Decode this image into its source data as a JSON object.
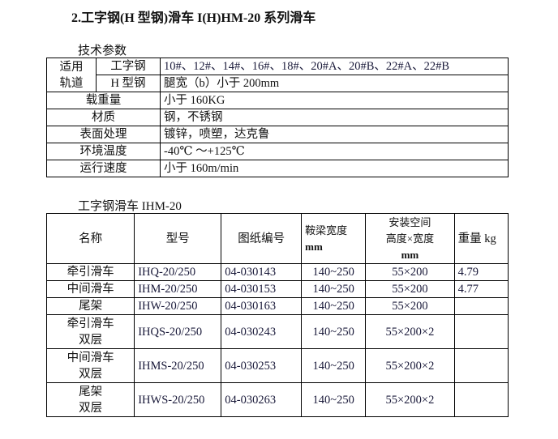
{
  "title": "2.工字钢(H 型钢)滑车 I(H)HM-20 系列滑车",
  "spec": {
    "caption": "技术参数",
    "track_label": "适用轨道",
    "track_l1": "适用",
    "track_l2": "轨道",
    "ibeam_label": "工字钢",
    "ibeam_value": "10#、12#、14#、16#、18#、20#A、20#B、22#A、22#B",
    "hbeam_label": "H 型钢",
    "hbeam_value": "腿宽（b）小于 200mm",
    "rows": [
      {
        "label": "载重量",
        "value": "小于 160KG"
      },
      {
        "label": "材质",
        "value": "钢，不锈钢"
      },
      {
        "label": "表面处理",
        "value": "镀锌，喷塑，达克鲁"
      },
      {
        "label": "环境温度",
        "value": "-40℃ ～+125℃"
      },
      {
        "label": "运行速度",
        "value": "小于 160m/min"
      }
    ]
  },
  "models": {
    "caption": "工字钢滑车 IHM-20",
    "headers": [
      "名称",
      "型号",
      "图纸编号",
      "鞍梁宽度",
      "mm",
      "安装空间",
      "高度×宽度",
      "mm",
      "重量 kg"
    ],
    "rows": [
      {
        "name1": "牵引滑车",
        "name2": "",
        "model": "IHQ-20/250",
        "drawing": "04-030143",
        "width": "140~250",
        "space": "55×200",
        "weight": "4.79"
      },
      {
        "name1": "中间滑车",
        "name2": "",
        "model": "IHM-20/250",
        "drawing": "04-030153",
        "width": "140~250",
        "space": "55×200",
        "weight": "4.77"
      },
      {
        "name1": "尾架",
        "name2": "",
        "model": "IHW-20/250",
        "drawing": "04-030163",
        "width": "140~250",
        "space": "55×200",
        "weight": ""
      },
      {
        "name1": "牵引滑车",
        "name2": "双层",
        "model": "IHQS-20/250",
        "drawing": "04-030243",
        "width": "140~250",
        "space": "55×200×2",
        "weight": ""
      },
      {
        "name1": "中间滑车",
        "name2": "双层",
        "model": "IHMS-20/250",
        "drawing": "04-030253",
        "width": "140~250",
        "space": "55×200×2",
        "weight": ""
      },
      {
        "name1": "尾架",
        "name2": "双层",
        "model": "IHWS-20/250",
        "drawing": "04-030263",
        "width": "140~250",
        "space": "55×200×2",
        "weight": ""
      }
    ]
  }
}
